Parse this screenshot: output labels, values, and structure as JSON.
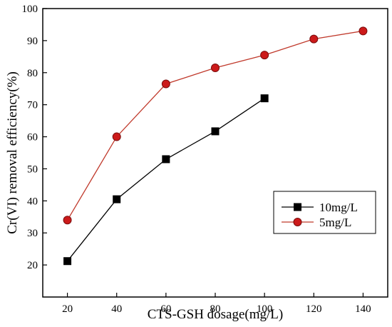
{
  "chart_data": {
    "type": "line",
    "xlabel": "CTS-GSH dosage(mg/L)",
    "ylabel": "Cr(VI) removal efficiency(%)",
    "xlim": [
      10,
      150
    ],
    "ylim": [
      10,
      100
    ],
    "xticks": [
      20,
      40,
      60,
      80,
      100,
      120,
      140
    ],
    "yticks": [
      20,
      30,
      40,
      50,
      60,
      70,
      80,
      90,
      100
    ],
    "grid": false,
    "legend_position": "bottom-right",
    "series": [
      {
        "name": "10mg/L",
        "marker": "square",
        "line_color": "#000000",
        "marker_fill": "#000000",
        "x": [
          20,
          40,
          60,
          80,
          100
        ],
        "y": [
          21.2,
          40.5,
          53.0,
          61.7,
          72.0
        ]
      },
      {
        "name": "5mg/L",
        "marker": "circle",
        "line_color": "#c0392b",
        "marker_fill": "#cc1a1a",
        "x": [
          20,
          40,
          60,
          80,
          100,
          120,
          140
        ],
        "y": [
          34.0,
          60.0,
          76.5,
          81.5,
          85.5,
          90.5,
          93.0
        ]
      }
    ]
  }
}
